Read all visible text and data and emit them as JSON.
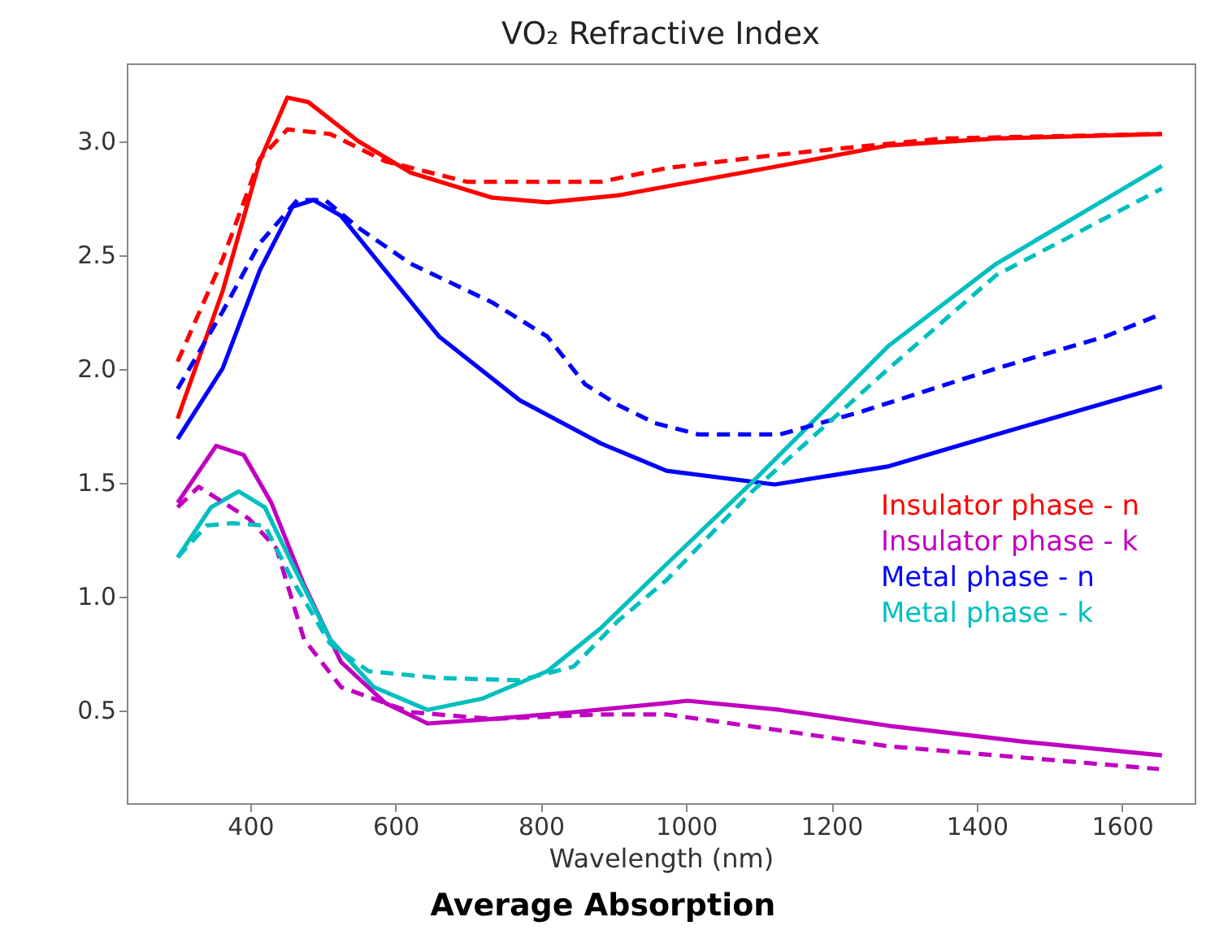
{
  "chart_data": {
    "type": "line",
    "title": "VO₂ Refractive Index",
    "xlabel": "Wavelength (nm)",
    "xlim": [
      230,
      1700
    ],
    "xticks": [
      400,
      600,
      800,
      1000,
      1200,
      1400,
      1600
    ],
    "ylim": [
      0.09,
      3.34
    ],
    "yticks": [
      {
        "value": 0.5,
        "label": "0.5"
      },
      {
        "value": 1,
        "label": "1.0"
      },
      {
        "value": 1.5,
        "label": "1.5"
      },
      {
        "value": 2,
        "label": "2.0"
      },
      {
        "value": 2.5,
        "label": "2.5"
      },
      {
        "value": 3,
        "label": "3.0"
      }
    ],
    "grid": false,
    "legend": "right",
    "marker": "none",
    "annotations": [
      "Average Absorption"
    ],
    "series": [
      {
        "name": "Insulator phase - n",
        "color": "#ff0000",
        "line_style": "solid",
        "x": [
          300,
          362,
          413,
          451,
          480,
          548,
          621,
          733,
          809,
          906,
          957,
          1129,
          1279,
          1427,
          1655
        ],
        "values": [
          1.78,
          2.34,
          2.91,
          3.19,
          3.17,
          3.0,
          2.86,
          2.75,
          2.73,
          2.76,
          2.79,
          2.89,
          2.98,
          3.01,
          3.03
        ]
      },
      {
        "name": "Insulator phase - k",
        "color": "#c000c0",
        "line_style": "solid",
        "x": [
          300,
          353,
          391,
          429,
          474,
          525,
          586,
          644,
          733,
          845,
          973,
          1002,
          1129,
          1279,
          1465,
          1655
        ],
        "values": [
          1.41,
          1.66,
          1.62,
          1.41,
          1.05,
          0.71,
          0.53,
          0.44,
          0.46,
          0.49,
          0.53,
          0.54,
          0.5,
          0.43,
          0.36,
          0.3
        ]
      },
      {
        "name": "Metal phase - n",
        "color": "#0000ff",
        "line_style": "solid",
        "x": [
          300,
          362,
          413,
          458,
          487,
          525,
          586,
          660,
          771,
          883,
          973,
          1122,
          1279,
          1427,
          1655
        ],
        "values": [
          1.69,
          2.0,
          2.43,
          2.71,
          2.74,
          2.67,
          2.43,
          2.14,
          1.86,
          1.67,
          1.55,
          1.49,
          1.57,
          1.71,
          1.92
        ]
      },
      {
        "name": "Metal phase - k",
        "color": "#00bfbf",
        "line_style": "solid",
        "x": [
          300,
          346,
          384,
          420,
          458,
          510,
          570,
          644,
          720,
          809,
          883,
          973,
          1091,
          1279,
          1427,
          1655
        ],
        "values": [
          1.17,
          1.39,
          1.46,
          1.39,
          1.14,
          0.81,
          0.6,
          0.5,
          0.55,
          0.67,
          0.86,
          1.14,
          1.5,
          2.1,
          2.46,
          2.89
        ]
      },
      {
        "color": "#ff0000",
        "line_style": "dashed",
        "x": [
          300,
          362,
          413,
          451,
          510,
          586,
          698,
          883,
          973,
          1129,
          1353,
          1655
        ],
        "values": [
          2.03,
          2.48,
          2.92,
          3.05,
          3.03,
          2.91,
          2.82,
          2.82,
          2.88,
          2.94,
          3.01,
          3.03
        ]
      },
      {
        "color": "#c000c0",
        "line_style": "dashed",
        "x": [
          300,
          329,
          398,
          436,
          474,
          525,
          621,
          733,
          883,
          973,
          1129,
          1279,
          1465,
          1651
        ],
        "values": [
          1.39,
          1.48,
          1.34,
          1.21,
          0.81,
          0.6,
          0.49,
          0.46,
          0.48,
          0.48,
          0.41,
          0.34,
          0.29,
          0.24
        ]
      },
      {
        "color": "#0000ff",
        "line_style": "dashed",
        "x": [
          300,
          362,
          413,
          465,
          503,
          548,
          621,
          733,
          809,
          861,
          906,
          957,
          1017,
          1129,
          1241,
          1427,
          1577,
          1655
        ],
        "values": [
          1.91,
          2.25,
          2.55,
          2.74,
          2.74,
          2.62,
          2.46,
          2.29,
          2.14,
          1.93,
          1.84,
          1.76,
          1.71,
          1.71,
          1.81,
          2.0,
          2.14,
          2.24
        ]
      },
      {
        "color": "#00bfbf",
        "line_style": "dashed",
        "x": [
          300,
          340,
          375,
          420,
          458,
          510,
          563,
          660,
          771,
          845,
          906,
          973,
          1091,
          1279,
          1427,
          1655
        ],
        "values": [
          1.17,
          1.31,
          1.32,
          1.31,
          1.07,
          0.79,
          0.67,
          0.64,
          0.63,
          0.69,
          0.89,
          1.07,
          1.46,
          2.0,
          2.41,
          2.79
        ]
      }
    ]
  }
}
